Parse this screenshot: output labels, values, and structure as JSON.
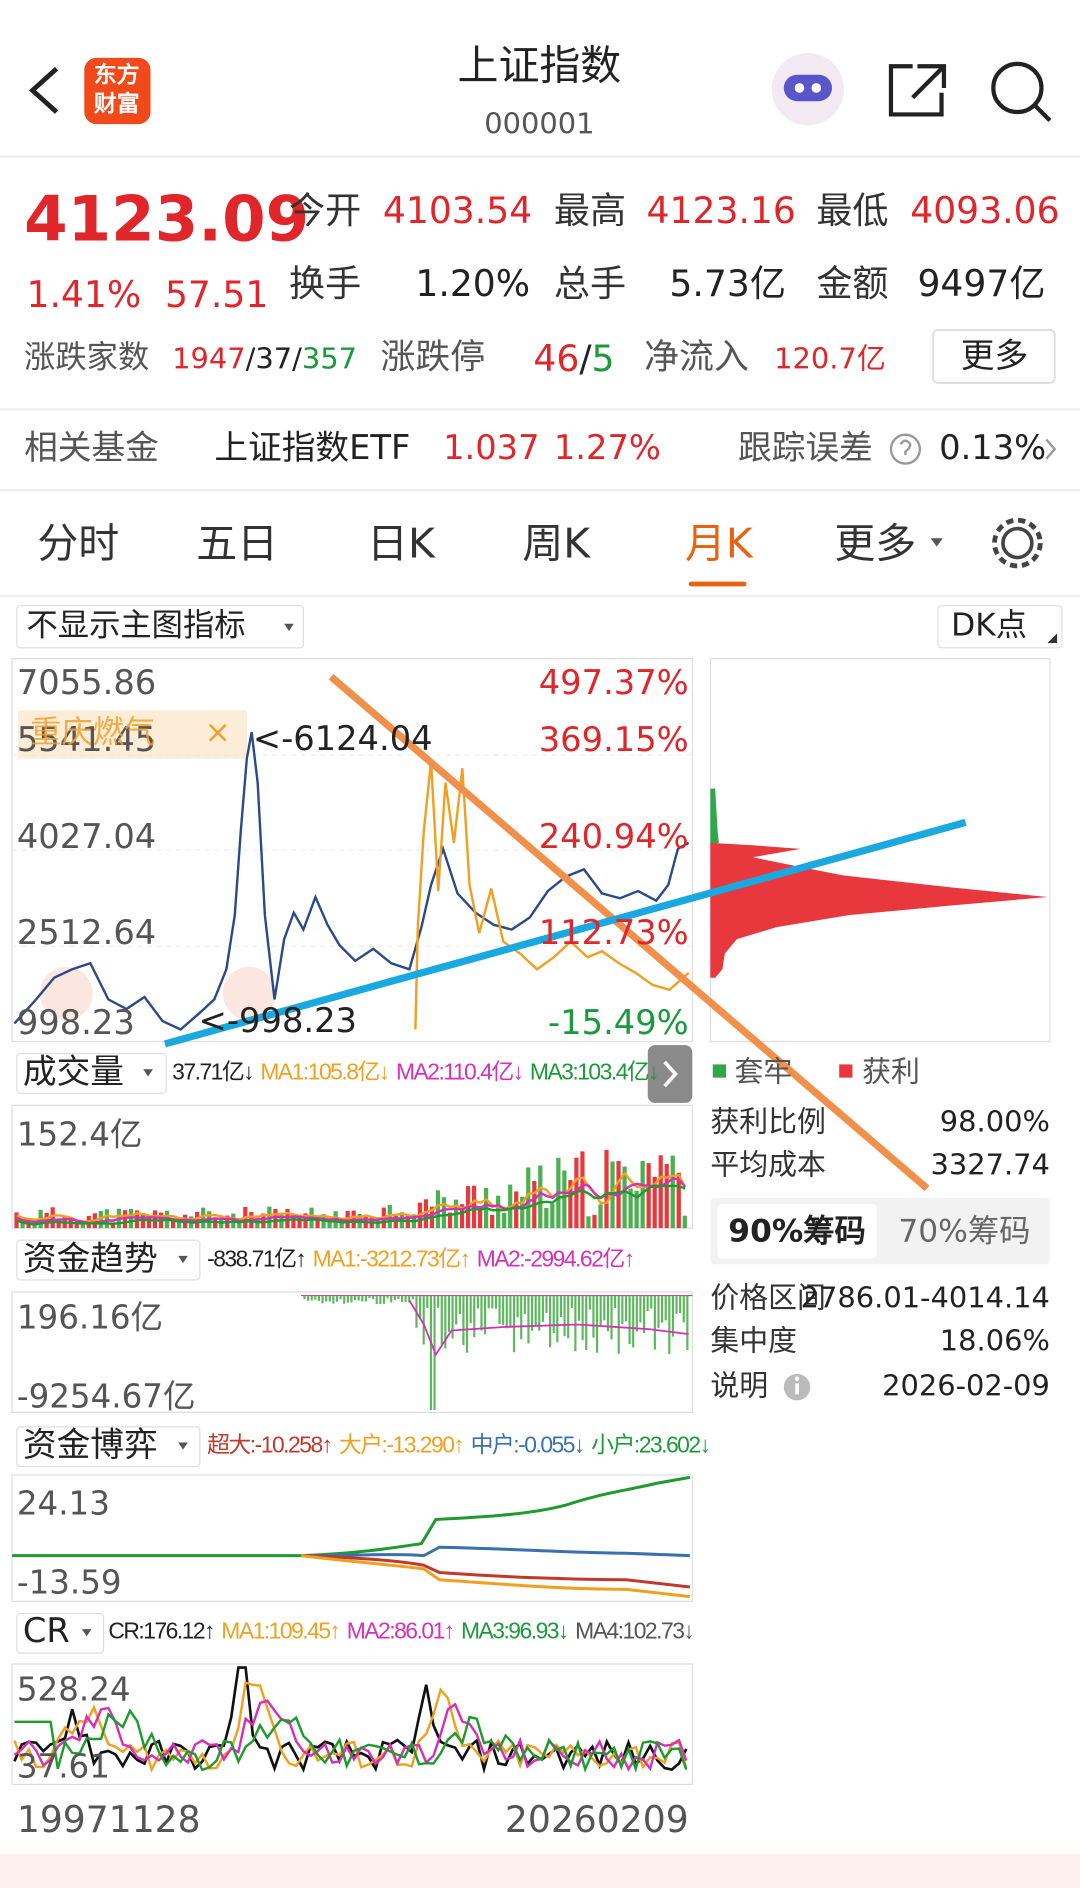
{
  "header": {
    "title": "上证指数",
    "code": "000001",
    "logo": [
      "东方",
      "财富"
    ]
  },
  "quote": {
    "price": "4123.09",
    "change_pct": "1.41%",
    "change": "57.51",
    "stats": [
      [
        "今开",
        "4103.54"
      ],
      [
        "最高",
        "4123.16"
      ],
      [
        "最低",
        "4093.06"
      ],
      [
        "换手",
        "1.20%"
      ],
      [
        "总手",
        "5.73亿"
      ],
      [
        "金额",
        "9497亿"
      ]
    ],
    "breadth": {
      "label": "涨跌家数",
      "values": [
        "1947",
        "37",
        "357"
      ],
      "sep": "/"
    },
    "limit": {
      "label": "涨跌停",
      "values": [
        "46",
        "5"
      ]
    },
    "inflow": {
      "label": "净流入",
      "value": "120.7亿"
    },
    "more": "更多"
  },
  "fund": {
    "label": "相关基金",
    "name": "上证指数ETF",
    "price": "1.037",
    "pct": "1.27%",
    "error_label": "跟踪误差",
    "error": "0.13%"
  },
  "tabs": [
    "分时",
    "五日",
    "日K",
    "周K",
    "月K",
    "更多"
  ],
  "chart": {
    "indicator": "不显示主图指标",
    "dk": "DK点",
    "y_left": [
      "7055.86",
      "5541.45",
      "4027.04",
      "2512.64",
      "998.23"
    ],
    "y_right": [
      "497.37%",
      "369.15%",
      "240.94%",
      "112.73%",
      "-15.49%"
    ],
    "high_note": "<-6124.04",
    "low_note": "<-998.23",
    "tag": "重庆燃气",
    "tag_close": "×"
  },
  "panels": [
    {
      "name": "成交量",
      "values": [
        "37.71亿↓",
        "MA1:105.8亿↓",
        "MA2:110.4亿↓",
        "MA3:103.4亿↓"
      ],
      "axis": [
        "152.4亿"
      ]
    },
    {
      "name": "资金趋势",
      "values": [
        "-838.71亿↑",
        "MA1:-3212.73亿↑",
        "MA2:-2994.62亿↑"
      ],
      "axis": [
        "196.16亿",
        "-9254.67亿"
      ]
    },
    {
      "name": "资金博弈",
      "values": [
        "超大:-10.258↑",
        "大户:-13.290↑",
        "中户:-0.055↓",
        "小户:23.602↓"
      ],
      "axis": [
        "24.13",
        "-13.59"
      ]
    },
    {
      "name": "CR",
      "values": [
        "CR:176.12↑",
        "MA1:109.45↑",
        "MA2:86.01↑",
        "MA3:96.93↓",
        "MA4:102.73↓"
      ],
      "axis": [
        "528.24",
        "37.61"
      ]
    }
  ],
  "dates": [
    "19971128",
    "20260209"
  ],
  "chips": {
    "legend": [
      "套牢",
      "获利"
    ],
    "rows": [
      [
        "获利比例",
        "98.00%"
      ],
      [
        "平均成本",
        "3327.74"
      ]
    ],
    "tabs": [
      "90%筹码",
      "70%筹码"
    ],
    "details": [
      [
        "价格区间",
        "2786.01-4014.14"
      ],
      [
        "集中度",
        "18.06%"
      ],
      [
        "说明",
        "2026-02-09"
      ]
    ]
  }
}
